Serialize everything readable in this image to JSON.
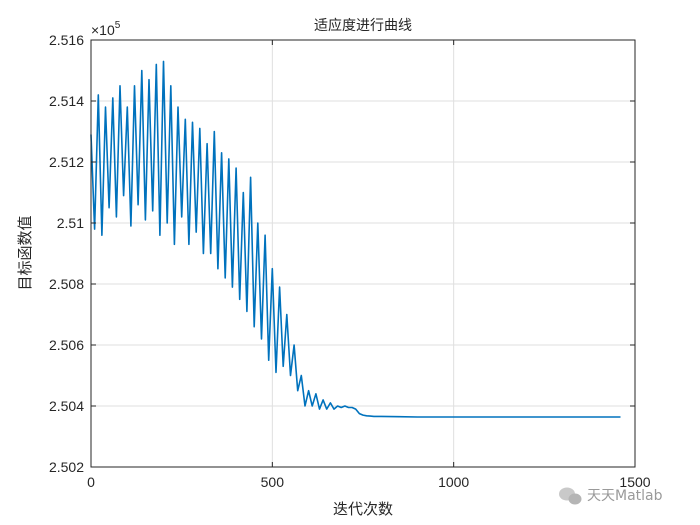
{
  "chart_data": {
    "type": "line",
    "title": "适应度进行曲线",
    "xlabel": "迭代次数",
    "ylabel": "目标函数值",
    "y_exponent_label": "×10",
    "y_exponent_power": "5",
    "xlim": [
      0,
      1500
    ],
    "ylim": [
      2.502,
      2.516
    ],
    "xticks": [
      0,
      500,
      1000,
      1500
    ],
    "xtick_labels": [
      "0",
      "500",
      "1000",
      "1500"
    ],
    "yticks": [
      2.502,
      2.504,
      2.506,
      2.508,
      2.51,
      2.512,
      2.514,
      2.516
    ],
    "ytick_labels": [
      "2.502",
      "2.504",
      "2.506",
      "2.508",
      "2.51",
      "2.512",
      "2.514",
      "2.516"
    ],
    "grid": true,
    "line_color": "#0072BD",
    "series": [
      {
        "x": [
          0,
          10,
          20,
          30,
          40,
          50,
          60,
          70,
          80,
          90,
          100,
          110,
          120,
          130,
          140,
          150,
          160,
          170,
          180,
          190,
          200,
          210,
          220,
          230,
          240,
          250,
          260,
          270,
          280,
          290,
          300,
          310,
          320,
          330,
          340,
          350,
          360,
          370,
          380,
          390,
          400,
          410,
          420,
          430,
          440,
          450,
          460,
          470,
          480,
          490,
          500,
          510,
          520,
          530,
          540,
          550,
          560,
          570,
          580,
          590,
          600,
          610,
          620,
          630,
          640,
          650,
          660,
          670,
          680,
          690,
          700,
          710,
          720,
          730,
          740,
          750,
          760,
          770,
          780,
          800,
          850,
          900,
          1000,
          1100,
          1200,
          1300,
          1400,
          1460
        ],
        "y": [
          2.5129,
          2.5098,
          2.5142,
          2.5096,
          2.5138,
          2.5105,
          2.5141,
          2.5102,
          2.5145,
          2.5109,
          2.5138,
          2.5099,
          2.5145,
          2.5106,
          2.515,
          2.5101,
          2.5147,
          2.5104,
          2.5152,
          2.5096,
          2.5153,
          2.51,
          2.5145,
          2.5093,
          2.5138,
          2.5102,
          2.5134,
          2.5093,
          2.5133,
          2.5097,
          2.5131,
          2.509,
          2.5126,
          2.509,
          2.513,
          2.5085,
          2.5123,
          2.5082,
          2.5121,
          2.5079,
          2.5118,
          2.5075,
          2.511,
          2.5071,
          2.5115,
          2.5066,
          2.51,
          2.5062,
          2.5096,
          2.5055,
          2.5085,
          2.5051,
          2.5079,
          2.5053,
          2.507,
          2.505,
          2.506,
          2.5045,
          2.505,
          2.504,
          2.5045,
          2.504,
          2.5044,
          2.5039,
          2.5042,
          2.5039,
          2.5041,
          2.5039,
          2.504,
          2.50395,
          2.504,
          2.50395,
          2.50395,
          2.5039,
          2.50375,
          2.5037,
          2.50368,
          2.50367,
          2.50366,
          2.50366,
          2.50365,
          2.50364,
          2.50364,
          2.50364,
          2.50364,
          2.50364,
          2.50364,
          2.50364
        ]
      }
    ]
  },
  "watermark": {
    "text": "天天Matlab",
    "icon": "wechat-icon"
  }
}
